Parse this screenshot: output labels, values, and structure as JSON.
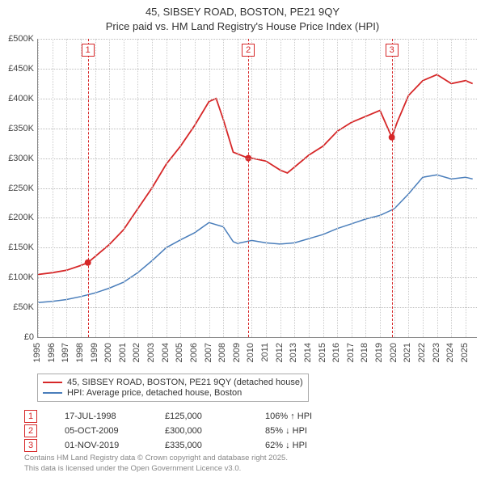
{
  "title_line1": "45, SIBSEY ROAD, BOSTON, PE21 9QY",
  "title_line2": "Price paid vs. HM Land Registry's House Price Index (HPI)",
  "chart": {
    "type": "line",
    "background_color": "#ffffff",
    "grid_color": "#cccccc",
    "x": {
      "label": null,
      "limits": [
        1995,
        2025.8
      ],
      "ticks": [
        1995,
        1996,
        1997,
        1998,
        1999,
        2000,
        2001,
        2002,
        2003,
        2004,
        2005,
        2006,
        2007,
        2008,
        2009,
        2010,
        2011,
        2012,
        2013,
        2014,
        2015,
        2016,
        2017,
        2018,
        2019,
        2020,
        2021,
        2022,
        2023,
        2024,
        2025
      ],
      "tick_rotation_deg": -90,
      "fontsize": 11
    },
    "y": {
      "label": null,
      "limits": [
        0,
        500000
      ],
      "ticks": [
        0,
        50000,
        100000,
        150000,
        200000,
        250000,
        300000,
        350000,
        400000,
        450000,
        500000
      ],
      "tick_labels": [
        "£0",
        "£50K",
        "£100K",
        "£150K",
        "£200K",
        "£250K",
        "£300K",
        "£350K",
        "£400K",
        "£450K",
        "£500K"
      ],
      "fontsize": 11
    },
    "series": [
      {
        "name": "45, SIBSEY ROAD, BOSTON, PE21 9QY (detached house)",
        "color": "#d62728",
        "line_width": 1.8,
        "x": [
          1995,
          1996,
          1997,
          1998,
          1998.5,
          1999,
          2000,
          2001,
          2002,
          2003,
          2004,
          2005,
          2006,
          2007,
          2007.5,
          2008,
          2008.7,
          2009.76,
          2010,
          2011,
          2012,
          2012.5,
          2013,
          2014,
          2015,
          2016,
          2017,
          2018,
          2019,
          2019.83,
          2020.2,
          2021,
          2022,
          2023,
          2024,
          2025,
          2025.5
        ],
        "y": [
          105000,
          108000,
          112000,
          120000,
          125000,
          135000,
          155000,
          180000,
          215000,
          250000,
          290000,
          320000,
          355000,
          395000,
          400000,
          365000,
          310000,
          300000,
          300000,
          295000,
          280000,
          275000,
          285000,
          305000,
          320000,
          345000,
          360000,
          370000,
          380000,
          335000,
          360000,
          405000,
          430000,
          440000,
          425000,
          430000,
          425000
        ],
        "markers": [
          {
            "index": 1,
            "x": 1998.5,
            "y": 125000
          },
          {
            "index": 2,
            "x": 2009.76,
            "y": 300000
          },
          {
            "index": 3,
            "x": 2019.83,
            "y": 335000
          }
        ]
      },
      {
        "name": "HPI: Average price, detached house, Boston",
        "color": "#4a7ebb",
        "line_width": 1.5,
        "x": [
          1995,
          1996,
          1997,
          1998,
          1999,
          2000,
          2001,
          2002,
          2003,
          2004,
          2005,
          2006,
          2007,
          2008,
          2008.7,
          2009,
          2010,
          2011,
          2012,
          2013,
          2014,
          2015,
          2016,
          2017,
          2018,
          2019,
          2020,
          2021,
          2022,
          2023,
          2024,
          2025,
          2025.5
        ],
        "y": [
          58000,
          60000,
          63000,
          68000,
          74000,
          82000,
          92000,
          108000,
          128000,
          150000,
          163000,
          175000,
          192000,
          185000,
          160000,
          157000,
          162000,
          158000,
          156000,
          158000,
          165000,
          172000,
          182000,
          190000,
          198000,
          204000,
          215000,
          240000,
          268000,
          272000,
          265000,
          268000,
          265000
        ]
      }
    ],
    "marker_lines_color": "#d62728",
    "marker_dot_radius": 4
  },
  "legend": {
    "items": [
      {
        "label": "45, SIBSEY ROAD, BOSTON, PE21 9QY (detached house)",
        "color": "#d62728"
      },
      {
        "label": "HPI: Average price, detached house, Boston",
        "color": "#4a7ebb"
      }
    ]
  },
  "transactions": [
    {
      "n": "1",
      "date": "17-JUL-1998",
      "price": "£125,000",
      "ratio": "106% ↑ HPI"
    },
    {
      "n": "2",
      "date": "05-OCT-2009",
      "price": "£300,000",
      "ratio": "85% ↓ HPI"
    },
    {
      "n": "3",
      "date": "01-NOV-2019",
      "price": "£335,000",
      "ratio": "62% ↓ HPI"
    }
  ],
  "footer_line1": "Contains HM Land Registry data © Crown copyright and database right 2025.",
  "footer_line2": "This data is licensed under the Open Government Licence v3.0."
}
